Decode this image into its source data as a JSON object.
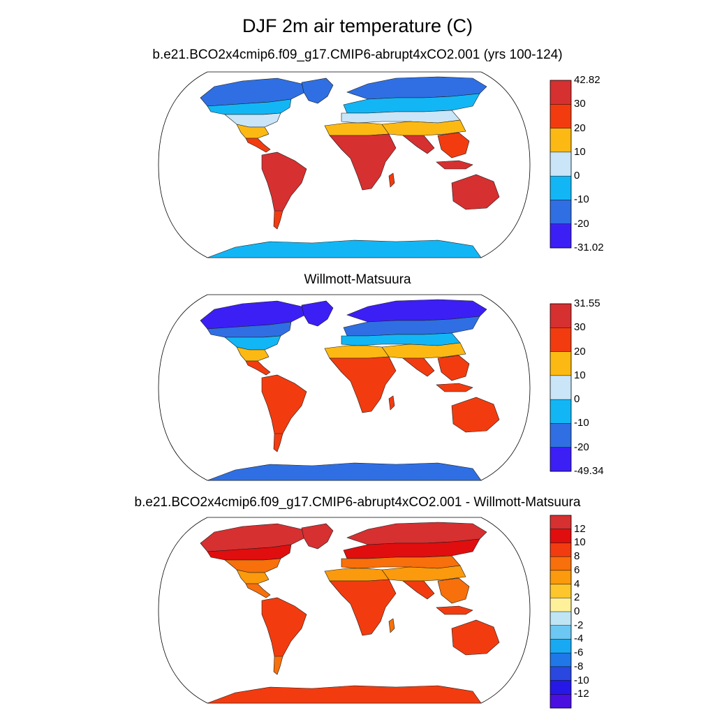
{
  "figure": {
    "title": "DJF 2m air temperature (C)"
  },
  "panels": [
    {
      "title": "b.e21.BCO2x4cmip6.f09_g17.CMIP6-abrupt4xCO2.001 (yrs 100-124)",
      "colorbar": {
        "labels": [
          "42.82",
          "30",
          "20",
          "10",
          "0",
          "-10",
          "-20",
          "-31.02"
        ],
        "colors": [
          "#d63031",
          "#f23c10",
          "#fdb913",
          "#c9e5f7",
          "#13b6f5",
          "#2f6fe3",
          "#3c1ff5"
        ]
      },
      "regions": {
        "arctic": "#2f6fe3",
        "north_temperate": "#13b6f5",
        "northern_mid": "#c9e5f7",
        "subtropics": "#fdb913",
        "tropics": "#f23c10",
        "warm_core": "#d63031",
        "antarctica": "#13b6f5"
      }
    },
    {
      "title": "Willmott-Matsuura",
      "colorbar": {
        "labels": [
          "31.55",
          "30",
          "20",
          "10",
          "0",
          "-10",
          "-20",
          "-49.34"
        ],
        "colors": [
          "#d63031",
          "#f23c10",
          "#fdb913",
          "#c9e5f7",
          "#13b6f5",
          "#2f6fe3",
          "#3c1ff5"
        ]
      },
      "regions": {
        "arctic": "#3c1ff5",
        "north_temperate": "#2f6fe3",
        "northern_mid": "#13b6f5",
        "subtropics": "#fdb913",
        "tropics": "#f23c10",
        "warm_core": "#f23c10",
        "antarctica": "#2f6fe3"
      }
    },
    {
      "title": "b.e21.BCO2x4cmip6.f09_g17.CMIP6-abrupt4xCO2.001 - Willmott-Matsuura",
      "colorbar": {
        "labels": [
          "12",
          "10",
          "8",
          "6",
          "4",
          "2",
          "0",
          "-2",
          "-4",
          "-6",
          "-8",
          "-10",
          "-12"
        ],
        "colors": [
          "#d63031",
          "#e00e0e",
          "#f23c10",
          "#f7700b",
          "#fa9a0c",
          "#fdc62c",
          "#fff19a",
          "#bfe5f5",
          "#6cc7f2",
          "#19a9f2",
          "#1f77e8",
          "#2a47e0",
          "#2618e6",
          "#4a10e0"
        ]
      },
      "regions": {
        "arctic": "#d63031",
        "north_temperate": "#e00e0e",
        "northern_mid": "#f7700b",
        "subtropics": "#fa9a0c",
        "tropics": "#f7700b",
        "warm_core": "#f23c10",
        "antarctica": "#f23c10"
      }
    }
  ]
}
